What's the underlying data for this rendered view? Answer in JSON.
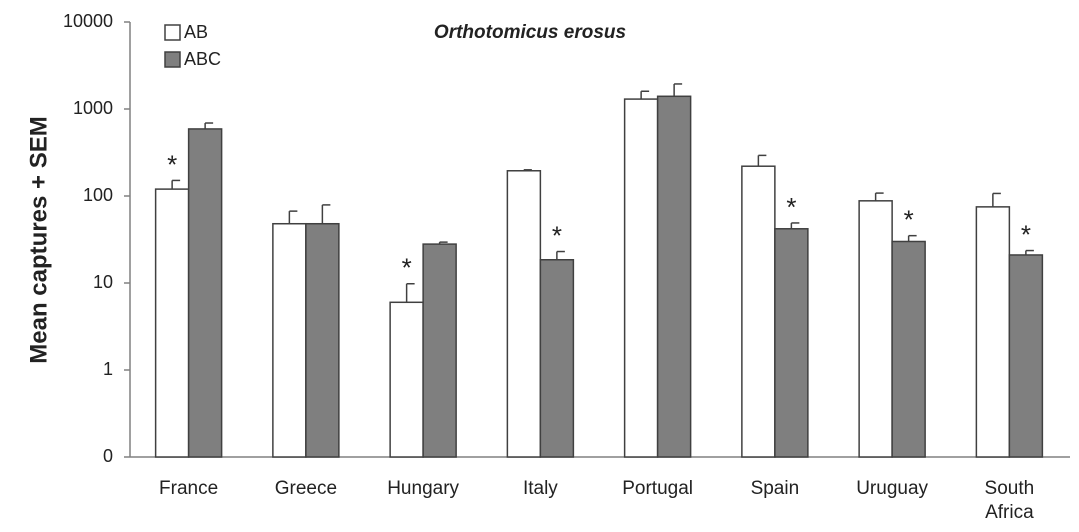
{
  "chart_data": {
    "type": "bar",
    "title": "Orthotomicus erosus",
    "y_label": "Mean captures  + SEM",
    "categories": [
      "France",
      "Greece",
      "Hungary",
      "Italy",
      "Portugal",
      "Spain",
      "Uruguay",
      "South Africa"
    ],
    "series": [
      {
        "name": "AB",
        "color": "#ffffff",
        "values": [
          120,
          48,
          6,
          195,
          1300,
          220,
          88,
          75
        ],
        "errors": [
          31,
          19,
          3.8,
          5,
          300,
          73,
          20,
          32
        ],
        "markers": [
          "*",
          null,
          "*",
          null,
          null,
          null,
          null,
          null
        ]
      },
      {
        "name": "ABC",
        "color": "#7f7f7f",
        "values": [
          590,
          48,
          28,
          18.5,
          1400,
          42,
          30,
          21
        ],
        "errors": [
          100,
          31,
          1.5,
          4.5,
          540,
          7,
          5,
          2.6
        ],
        "markers": [
          null,
          null,
          null,
          "*",
          null,
          "*",
          "*",
          "*"
        ]
      }
    ],
    "log_scale": true,
    "ylim": [
      0.1,
      10000
    ],
    "yticks": [
      {
        "value": 0.1,
        "label": "0"
      },
      1,
      10,
      100,
      1000,
      10000
    ],
    "grid": false,
    "legend": "upper left"
  }
}
